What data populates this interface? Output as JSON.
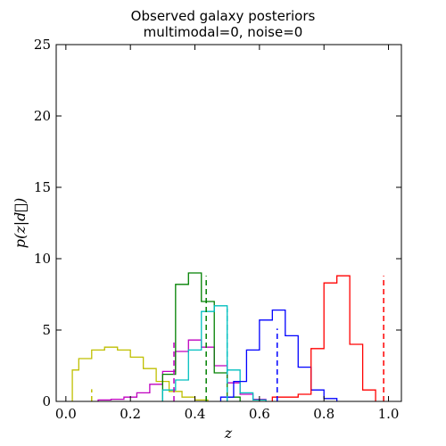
{
  "chart_data": {
    "type": "histogram",
    "title": "Observed galaxy posteriors",
    "subtitle": "multimodal=0, noise=0",
    "xlabel": "z",
    "ylabel": "p(z|d⃗)",
    "xlim": [
      -0.03,
      1.04
    ],
    "ylim": [
      0,
      25
    ],
    "xticks": [
      0.0,
      0.2,
      0.4,
      0.6,
      0.8,
      1.0
    ],
    "xtick_labels": [
      "0.0",
      "0.2",
      "0.4",
      "0.6",
      "0.8",
      "1.0"
    ],
    "yticks": [
      0,
      5,
      10,
      15,
      20,
      25
    ],
    "ytick_labels": [
      "0",
      "5",
      "10",
      "15",
      "20",
      "25"
    ],
    "series": [
      {
        "color": "#bfbf00",
        "edges": [
          0.02,
          0.04,
          0.08,
          0.12,
          0.16,
          0.2,
          0.24,
          0.28,
          0.32,
          0.36,
          0.4,
          0.44
        ],
        "values": [
          2.2,
          3.0,
          3.6,
          3.8,
          3.6,
          3.1,
          2.3,
          1.4,
          0.7,
          0.3,
          0.1
        ],
        "true_z": 0.08,
        "marker_height": 0.85
      },
      {
        "color": "#bf00bf",
        "edges": [
          0.1,
          0.14,
          0.18,
          0.22,
          0.26,
          0.3,
          0.34,
          0.38,
          0.42,
          0.46,
          0.5,
          0.54,
          0.58,
          0.62
        ],
        "values": [
          0.1,
          0.15,
          0.3,
          0.6,
          1.2,
          2.1,
          3.5,
          4.3,
          3.8,
          2.5,
          1.3,
          0.5,
          0.15
        ],
        "true_z": 0.335,
        "marker_height": 4.3
      },
      {
        "color": "#008000",
        "edges": [
          0.3,
          0.34,
          0.38,
          0.42,
          0.46,
          0.5,
          0.54
        ],
        "values": [
          1.9,
          8.2,
          9.0,
          7.0,
          2.0,
          0.3
        ],
        "true_z": 0.435,
        "marker_height": 8.8
      },
      {
        "color": "#00bfbf",
        "edges": [
          0.3,
          0.34,
          0.38,
          0.42,
          0.46,
          0.5,
          0.54,
          0.58,
          0.62
        ],
        "values": [
          0.8,
          1.5,
          3.6,
          6.3,
          6.7,
          2.2,
          0.6,
          0.1
        ],
        "true_z": 0.5,
        "marker_height": 6.5
      },
      {
        "color": "#0000ff",
        "edges": [
          0.48,
          0.52,
          0.56,
          0.6,
          0.64,
          0.68,
          0.72,
          0.76,
          0.8,
          0.84
        ],
        "values": [
          0.3,
          1.4,
          3.6,
          5.7,
          6.4,
          4.6,
          2.4,
          0.8,
          0.2
        ],
        "true_z": 0.655,
        "marker_height": 5.1
      },
      {
        "color": "#ff0000",
        "edges": [
          0.64,
          0.68,
          0.72,
          0.76,
          0.8,
          0.84,
          0.88,
          0.92,
          0.96
        ],
        "values": [
          0.3,
          0.3,
          0.5,
          3.7,
          8.3,
          8.8,
          4.0,
          0.8
        ],
        "true_z": 0.985,
        "marker_height": 8.8
      }
    ]
  }
}
